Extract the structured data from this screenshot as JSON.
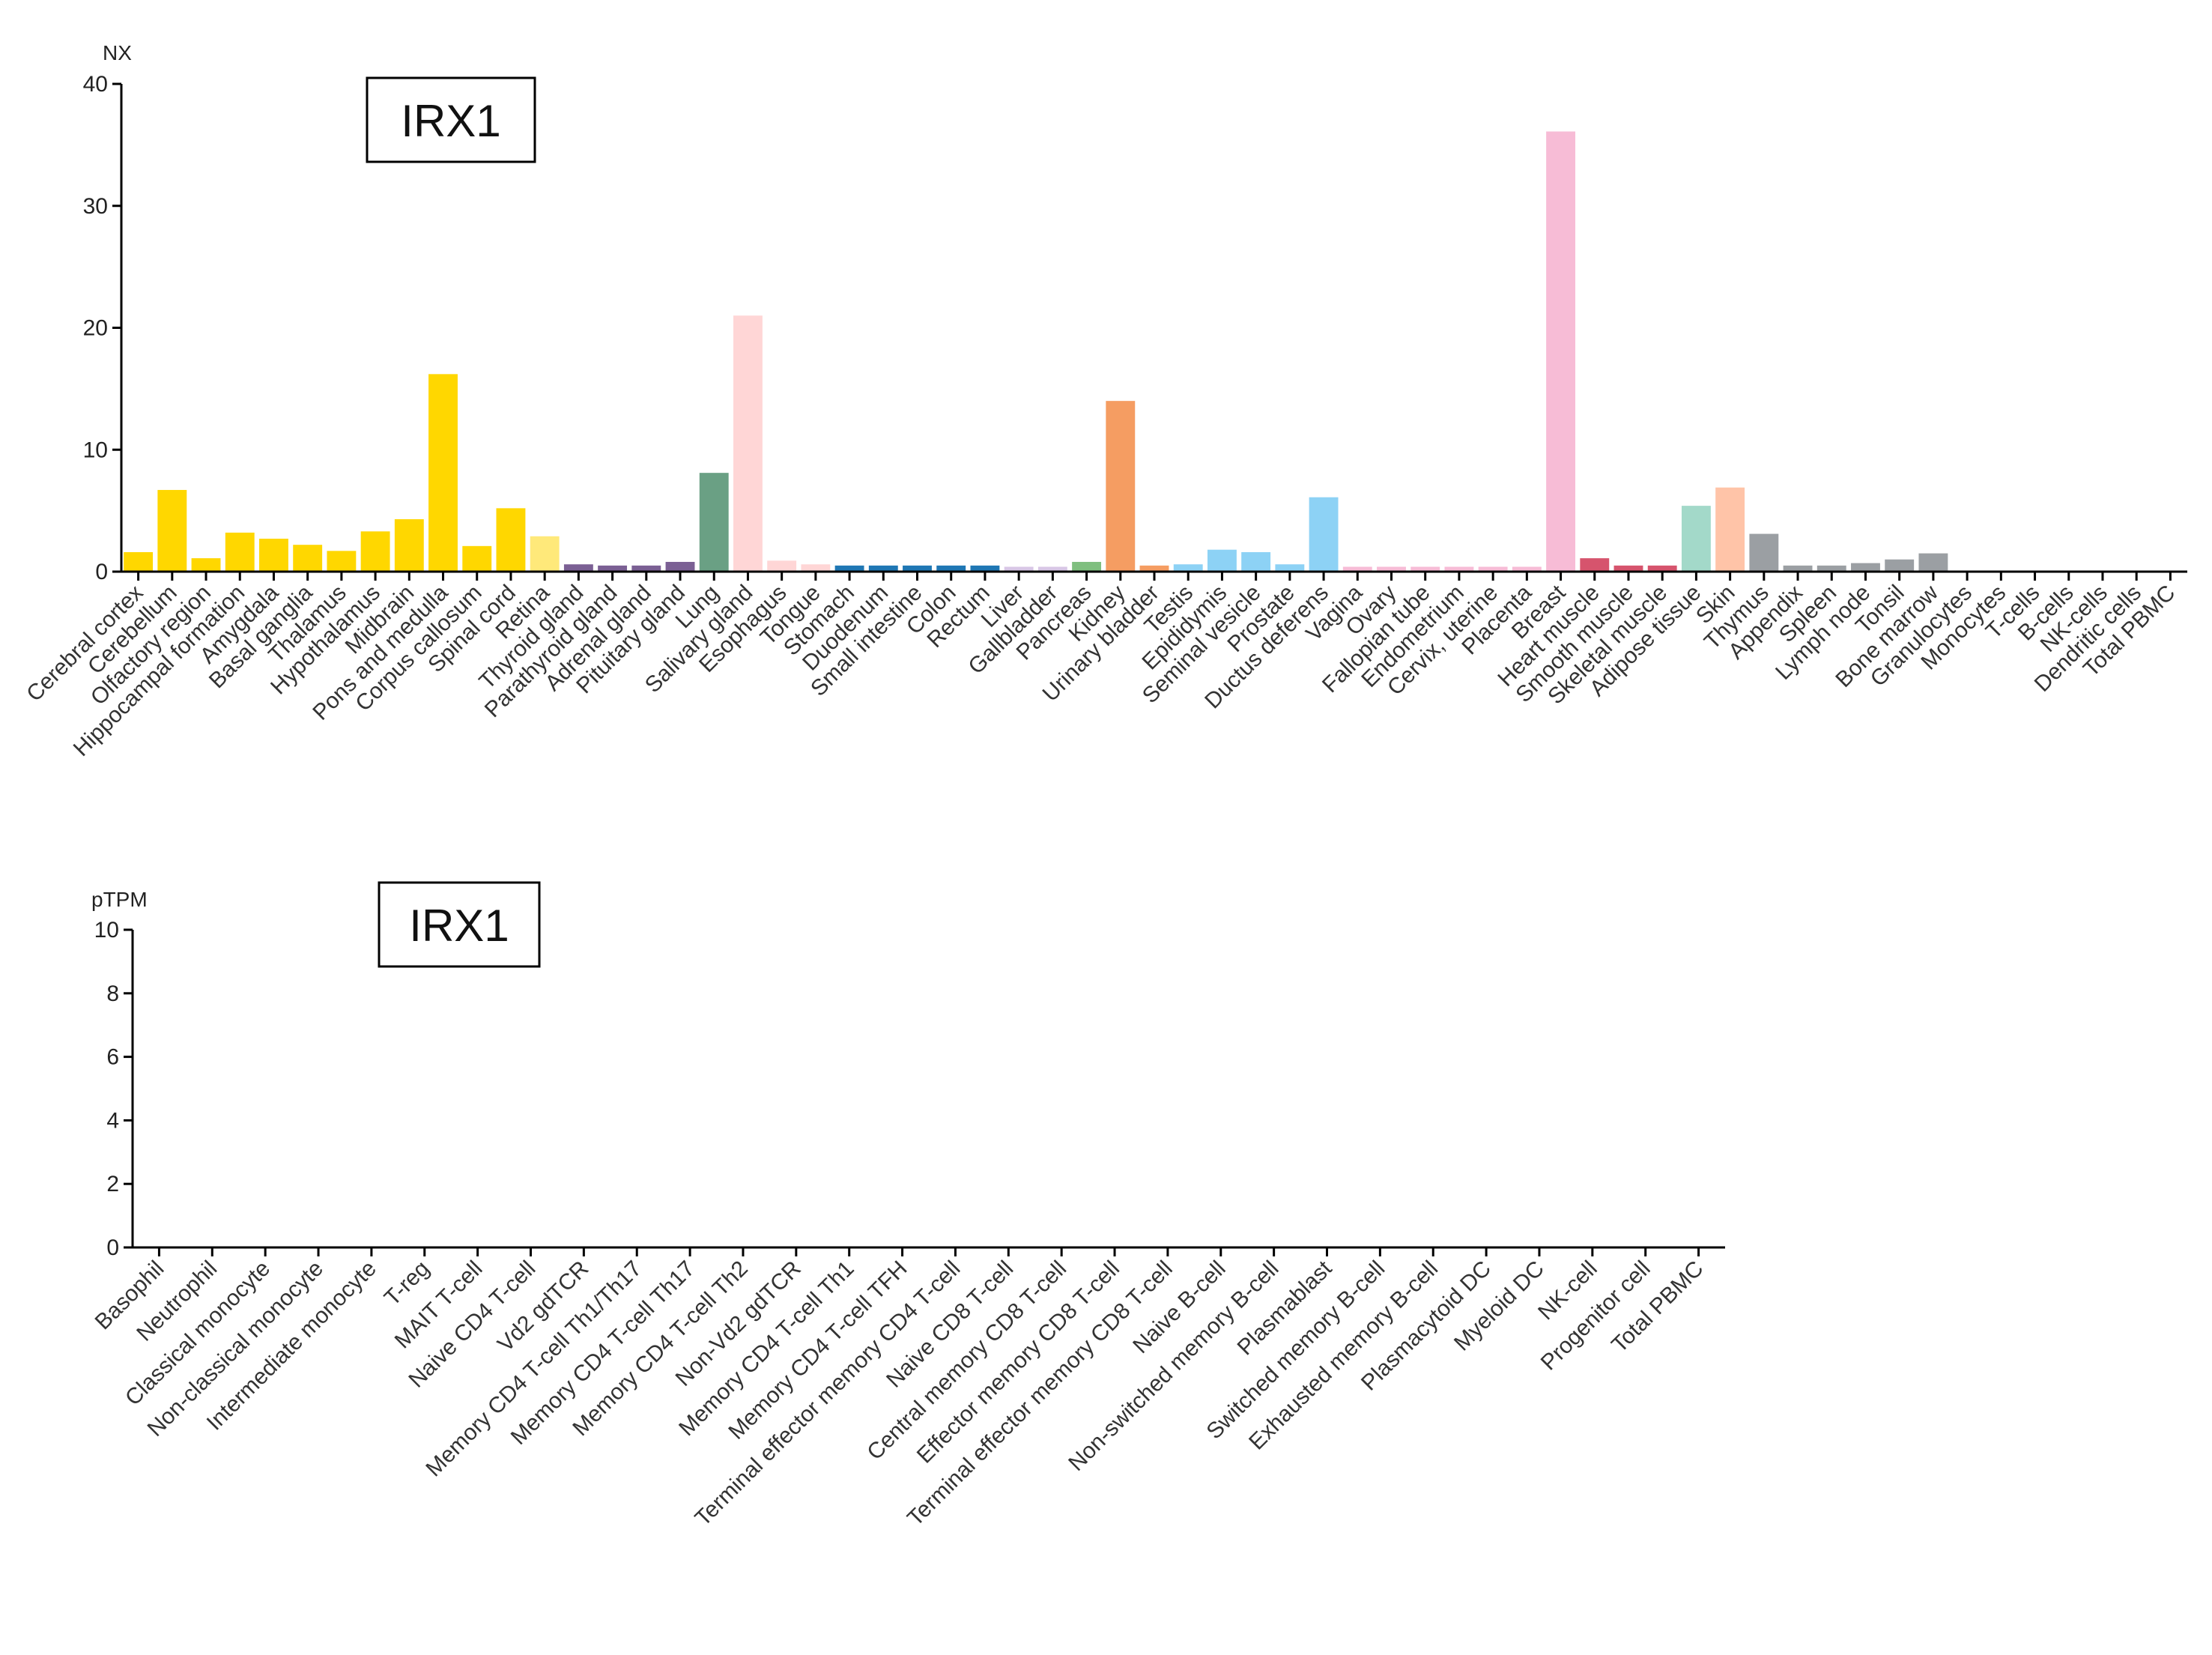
{
  "chart_data": [
    {
      "type": "bar",
      "gene": "IRX1",
      "unit_label": "NX",
      "ylim": [
        0,
        40
      ],
      "yticks": [
        0,
        10,
        20,
        30,
        40
      ],
      "categories": [
        "Cerebral cortex",
        "Cerebellum",
        "Olfactory region",
        "Hippocampal formation",
        "Amygdala",
        "Basal ganglia",
        "Thalamus",
        "Hypothalamus",
        "Midbrain",
        "Pons and medulla",
        "Corpus callosum",
        "Spinal cord",
        "Retina",
        "Thyroid gland",
        "Parathyroid gland",
        "Adrenal gland",
        "Pituitary gland",
        "Lung",
        "Salivary gland",
        "Esophagus",
        "Tongue",
        "Stomach",
        "Duodenum",
        "Small intestine",
        "Colon",
        "Rectum",
        "Liver",
        "Gallbladder",
        "Pancreas",
        "Kidney",
        "Urinary bladder",
        "Testis",
        "Epididymis",
        "Seminal vesicle",
        "Prostate",
        "Ductus deferens",
        "Vagina",
        "Ovary",
        "Fallopian tube",
        "Endometrium",
        "Cervix, uterine",
        "Placenta",
        "Breast",
        "Heart muscle",
        "Smooth muscle",
        "Skeletal muscle",
        "Adipose tissue",
        "Skin",
        "Thymus",
        "Appendix",
        "Spleen",
        "Lymph node",
        "Tonsil",
        "Bone marrow",
        "Granulocytes",
        "Monocytes",
        "T-cells",
        "B-cells",
        "NK-cells",
        "Dendritic cells",
        "Total PBMC"
      ],
      "values": [
        1.6,
        6.7,
        1.1,
        3.2,
        2.7,
        2.2,
        1.7,
        3.3,
        4.3,
        16.2,
        2.1,
        5.2,
        2.9,
        0.6,
        0.5,
        0.5,
        0.8,
        8.1,
        21.0,
        0.9,
        0.6,
        0.5,
        0.5,
        0.5,
        0.5,
        0.5,
        0.4,
        0.4,
        0.8,
        14.0,
        0.5,
        0.6,
        1.8,
        1.6,
        0.6,
        6.1,
        0.4,
        0.4,
        0.4,
        0.4,
        0.4,
        0.4,
        36.1,
        1.1,
        0.5,
        0.5,
        5.4,
        6.9,
        3.1,
        0.5,
        0.5,
        0.7,
        1.0,
        1.5,
        0,
        0,
        0,
        0,
        0,
        0,
        0
      ],
      "colors": [
        "#ffd700",
        "#ffd700",
        "#ffd700",
        "#ffd700",
        "#ffd700",
        "#ffd700",
        "#ffd700",
        "#ffd700",
        "#ffd700",
        "#ffd700",
        "#ffd700",
        "#ffd700",
        "#ffe97a",
        "#7b6094",
        "#7b6094",
        "#7b6094",
        "#7b6094",
        "#6aa084",
        "#ffd6d6",
        "#ffd6d6",
        "#ffd6d6",
        "#1f77b4",
        "#1f77b4",
        "#1f77b4",
        "#1f77b4",
        "#1f77b4",
        "#d8c7e6",
        "#d8c7e6",
        "#7fbf7f",
        "#f59d62",
        "#f59d62",
        "#8dd2f5",
        "#8dd2f5",
        "#8dd2f5",
        "#8dd2f5",
        "#8dd2f5",
        "#f7bcd6",
        "#f7bcd6",
        "#f7bcd6",
        "#f7bcd6",
        "#f7bcd6",
        "#f7bcd6",
        "#f7bcd6",
        "#d6546d",
        "#d6546d",
        "#d6546d",
        "#a3d9c9",
        "#ffc4a8",
        "#9b9fa3",
        "#9b9fa3",
        "#9b9fa3",
        "#9b9fa3",
        "#9b9fa3",
        "#9b9fa3",
        "#9b9fa3",
        "#9b9fa3",
        "#9b9fa3",
        "#9b9fa3",
        "#9b9fa3",
        "#9b9fa3",
        "#9b9fa3"
      ]
    },
    {
      "type": "bar",
      "gene": "IRX1",
      "unit_label": "pTPM",
      "ylim": [
        0,
        10
      ],
      "yticks": [
        0,
        2,
        4,
        6,
        8,
        10
      ],
      "categories": [
        "Basophil",
        "Neutrophil",
        "Classical monocyte",
        "Non-classical monocyte",
        "Intermediate monocyte",
        "T-reg",
        "MAIT T-cell",
        "Naive CD4 T-cell",
        "Vd2 gdTCR",
        "Memory CD4 T-cell Th1/Th17",
        "Memory CD4 T-cell Th17",
        "Memory CD4 T-cell Th2",
        "Non-Vd2 gdTCR",
        "Memory CD4 T-cell Th1",
        "Memory CD4 T-cell TFH",
        "Terminal effector memory CD4 T-cell",
        "Naive CD8 T-cell",
        "Central memory CD8 T-cell",
        "Effector memory CD8 T-cell",
        "Terminal effector memory CD8 T-cell",
        "Naive B-cell",
        "Non-switched memory B-cell",
        "Plasmablast",
        "Switched memory B-cell",
        "Exhausted memory B-cell",
        "Plasmacytoid DC",
        "Myeloid DC",
        "NK-cell",
        "Progenitor cell",
        "Total PBMC"
      ],
      "values": [
        0,
        0,
        0,
        0,
        0,
        0,
        0,
        0,
        0,
        0,
        0,
        0,
        0,
        0,
        0,
        0,
        0,
        0,
        0,
        0,
        0,
        0,
        0,
        0,
        0,
        0,
        0,
        0,
        0,
        0
      ],
      "colors": [
        "#9b9fa3"
      ]
    }
  ]
}
